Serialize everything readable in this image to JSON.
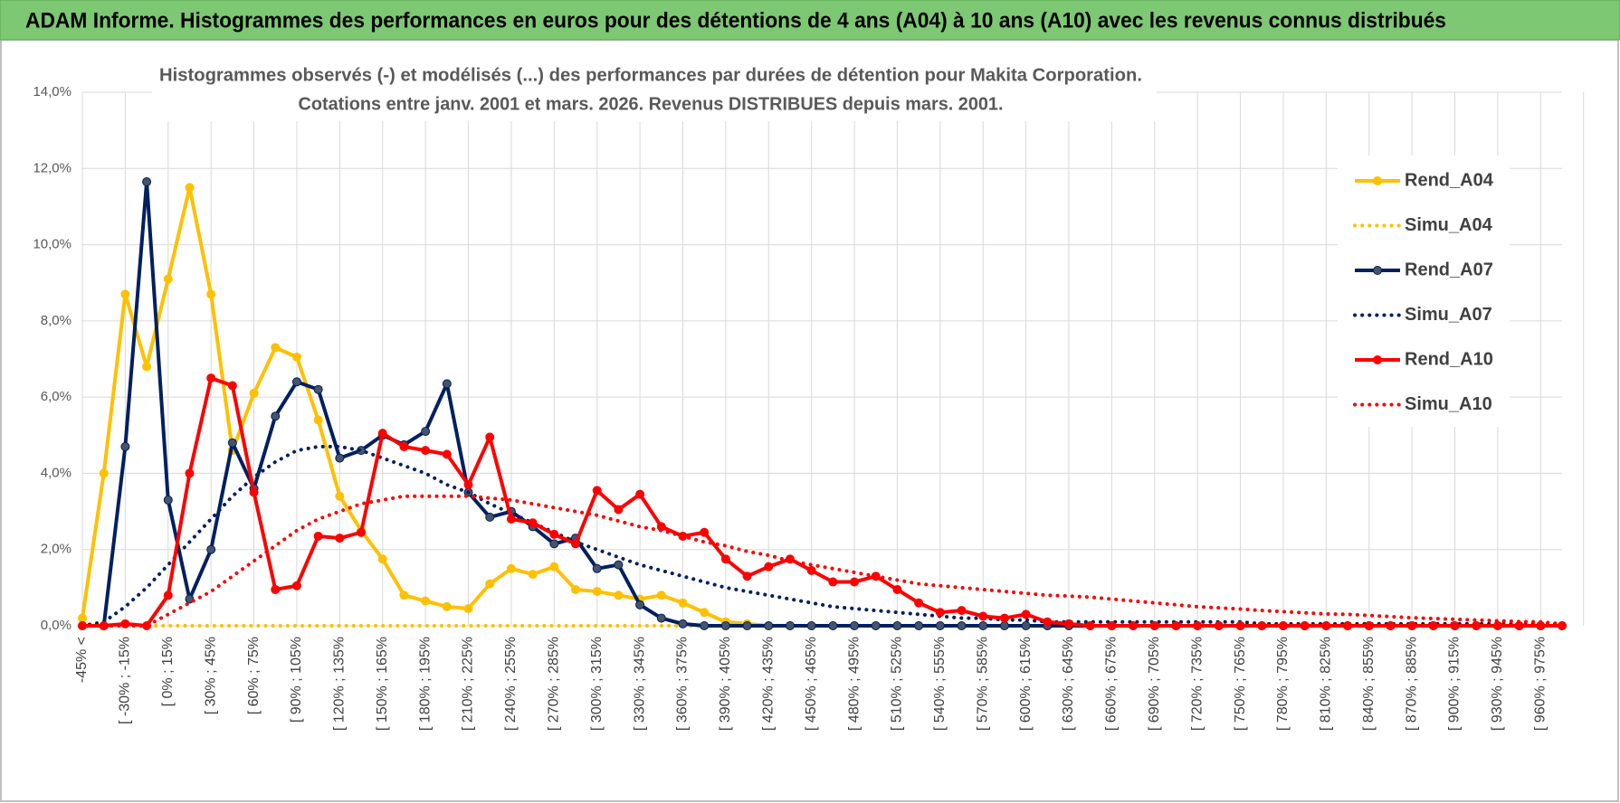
{
  "header": {
    "title": "ADAM Informe. Histogrammes des performances en euros pour des détentions de 4 ans (A04) à 10 ans (A10) avec les revenus connus distribués"
  },
  "chart_data": {
    "type": "line",
    "title": [
      "Histogrammes observés (-) et modélisés (...) des performances par durées de détention pour Makita Corporation.",
      "Cotations entre janv. 2001 et mars. 2026. Revenus DISTRIBUES depuis mars. 2001."
    ],
    "categories": [
      "-45% <",
      null,
      "[ -30% ; -15%",
      null,
      "[ 0% ; 15%",
      null,
      "[ 30% ; 45%",
      null,
      "[ 60% ; 75%",
      null,
      "[ 90% ; 105%",
      null,
      "[ 120% ; 135%",
      null,
      "[ 150% ; 165%",
      null,
      "[ 180% ; 195%",
      null,
      "[ 210% ; 225%",
      null,
      "[ 240% ; 255%",
      null,
      "[ 270% ; 285%",
      null,
      "[ 300% ; 315%",
      null,
      "[ 330% ; 345%",
      null,
      "[ 360% ; 375%",
      null,
      "[ 390% ; 405%",
      null,
      "[ 420% ; 435%",
      null,
      "[ 450% ; 465%",
      null,
      "[ 480% ; 495%",
      null,
      "[ 510% ; 525%",
      null,
      "[ 540% ; 555%",
      null,
      "[ 570% ; 585%",
      null,
      "[ 600% ; 615%",
      null,
      "[ 630% ; 645%",
      null,
      "[ 660% ; 675%",
      null,
      "[ 690% ; 705%",
      null,
      "[ 720% ; 735%",
      null,
      "[ 750% ; 765%",
      null,
      "[ 780% ; 795%",
      null,
      "[ 810% ; 825%",
      null,
      "[ 840% ; 855%",
      null,
      "[ 870% ; 885%",
      null,
      "[ 900% ; 915%",
      null,
      "[ 930% ; 945%",
      null,
      "[ 960% ; 975%",
      null
    ],
    "series": [
      {
        "name": "Rend_A04",
        "color": "#FFC000",
        "style": "solid",
        "markers": true,
        "marker_color": "#FFC000",
        "values": [
          0.2,
          4.0,
          8.7,
          6.8,
          9.1,
          11.5,
          8.7,
          4.6,
          6.1,
          7.3,
          7.05,
          5.4,
          3.4,
          2.5,
          1.75,
          0.8,
          0.65,
          0.5,
          0.45,
          1.1,
          1.5,
          1.35,
          1.55,
          0.95,
          0.9,
          0.8,
          0.7,
          0.8,
          0.6,
          0.35,
          0.1,
          0.05,
          0,
          0,
          0,
          0,
          0,
          0,
          0,
          0,
          0,
          0,
          0,
          0,
          0,
          0,
          0,
          0,
          0,
          0,
          0,
          0,
          0,
          0,
          0,
          0,
          0,
          0,
          0,
          0,
          0,
          0,
          0,
          0,
          0,
          0,
          0,
          0,
          0,
          0
        ]
      },
      {
        "name": "Simu_A04",
        "color": "#FFC000",
        "style": "dotted",
        "markers": false,
        "values": [
          0,
          0,
          0,
          0,
          0,
          0,
          0,
          0,
          0,
          0,
          0,
          0,
          0,
          0,
          0,
          0,
          0,
          0,
          0,
          0,
          0,
          0,
          0,
          0,
          0,
          0,
          0,
          0,
          0,
          0,
          0,
          0,
          0,
          0,
          0,
          0,
          0,
          0,
          0,
          0,
          0,
          0,
          0,
          0,
          0,
          0,
          0,
          0,
          0,
          0,
          0,
          0,
          0,
          0,
          0,
          0,
          0,
          0,
          0,
          0,
          0,
          0,
          0,
          0,
          0,
          0,
          0,
          0,
          0,
          0
        ]
      },
      {
        "name": "Rend_A07",
        "color": "#002060",
        "style": "solid",
        "markers": true,
        "marker_color": "#44546A",
        "values": [
          0,
          0,
          4.7,
          11.65,
          3.3,
          0.7,
          2.0,
          4.8,
          3.6,
          5.5,
          6.4,
          6.2,
          4.4,
          4.6,
          5.0,
          4.75,
          5.1,
          6.35,
          3.5,
          2.85,
          3.0,
          2.6,
          2.15,
          2.3,
          1.5,
          1.6,
          0.55,
          0.2,
          0.05,
          0,
          0,
          0,
          0,
          0,
          0,
          0,
          0,
          0,
          0,
          0,
          0,
          0,
          0,
          0,
          0,
          0,
          0,
          0,
          0,
          0,
          0,
          0,
          0,
          0,
          0,
          0,
          0,
          0,
          0,
          0,
          0,
          0,
          0,
          0,
          0,
          0,
          0,
          0,
          0,
          0
        ]
      },
      {
        "name": "Simu_A07",
        "color": "#002060",
        "style": "dotted",
        "markers": false,
        "values": [
          0,
          0.1,
          0.5,
          1.0,
          1.6,
          2.2,
          2.8,
          3.4,
          3.9,
          4.3,
          4.6,
          4.7,
          4.7,
          4.6,
          4.4,
          4.2,
          4.0,
          3.7,
          3.5,
          3.2,
          2.95,
          2.7,
          2.45,
          2.2,
          2.0,
          1.8,
          1.6,
          1.45,
          1.3,
          1.15,
          1.0,
          0.9,
          0.8,
          0.7,
          0.6,
          0.5,
          0.45,
          0.4,
          0.35,
          0.3,
          0.25,
          0.2,
          0.2,
          0.15,
          0.15,
          0.1,
          0.1,
          0.1,
          0.1,
          0.1,
          0.1,
          0.1,
          0.1,
          0.1,
          0.1,
          0.05,
          0.05,
          0.05,
          0.05,
          0.05,
          0.05,
          0.05,
          0.05,
          0.05,
          0.05,
          0.05,
          0.05,
          0.05,
          0.05,
          0.05
        ]
      },
      {
        "name": "Rend_A10",
        "color": "#FF0000",
        "style": "solid",
        "markers": true,
        "marker_color": "#FF0000",
        "values": [
          0,
          0,
          0.05,
          0,
          0.8,
          4.0,
          6.5,
          6.3,
          3.5,
          0.95,
          1.05,
          2.35,
          2.3,
          2.45,
          5.05,
          4.7,
          4.6,
          4.5,
          3.7,
          4.95,
          2.8,
          2.7,
          2.4,
          2.15,
          3.55,
          3.05,
          3.45,
          2.6,
          2.35,
          2.45,
          1.75,
          1.3,
          1.55,
          1.75,
          1.45,
          1.15,
          1.15,
          1.3,
          0.95,
          0.6,
          0.35,
          0.4,
          0.25,
          0.2,
          0.3,
          0.1,
          0.05,
          0,
          0,
          0,
          0,
          0,
          0,
          0,
          0,
          0,
          0,
          0,
          0,
          0,
          0,
          0,
          0,
          0,
          0,
          0,
          0,
          0,
          0,
          0
        ]
      },
      {
        "name": "Simu_A10",
        "color": "#FF0000",
        "style": "dotted",
        "markers": false,
        "values": [
          0,
          0,
          0,
          0,
          0.3,
          0.6,
          0.9,
          1.3,
          1.7,
          2.1,
          2.5,
          2.8,
          3.0,
          3.2,
          3.3,
          3.4,
          3.4,
          3.4,
          3.4,
          3.35,
          3.3,
          3.2,
          3.1,
          3.0,
          2.9,
          2.75,
          2.6,
          2.5,
          2.35,
          2.2,
          2.1,
          1.95,
          1.85,
          1.7,
          1.6,
          1.5,
          1.4,
          1.3,
          1.2,
          1.1,
          1.05,
          1.0,
          0.95,
          0.9,
          0.85,
          0.8,
          0.78,
          0.75,
          0.7,
          0.65,
          0.6,
          0.55,
          0.5,
          0.47,
          0.44,
          0.4,
          0.37,
          0.34,
          0.31,
          0.3,
          0.27,
          0.24,
          0.21,
          0.19,
          0.17,
          0.15,
          0.13,
          0.11,
          0.1,
          0.05
        ]
      }
    ],
    "ylim": [
      0,
      14
    ],
    "yticks": [
      {
        "value": 0,
        "label": "0,0%"
      },
      {
        "value": 2,
        "label": "2,0%"
      },
      {
        "value": 4,
        "label": "4,0%"
      },
      {
        "value": 6,
        "label": "6,0%"
      },
      {
        "value": 8,
        "label": "8,0%"
      },
      {
        "value": 10,
        "label": "10,0%"
      },
      {
        "value": 12,
        "label": "12,0%"
      },
      {
        "value": 14,
        "label": "14,0%"
      }
    ],
    "grid": true,
    "legend": "right"
  }
}
